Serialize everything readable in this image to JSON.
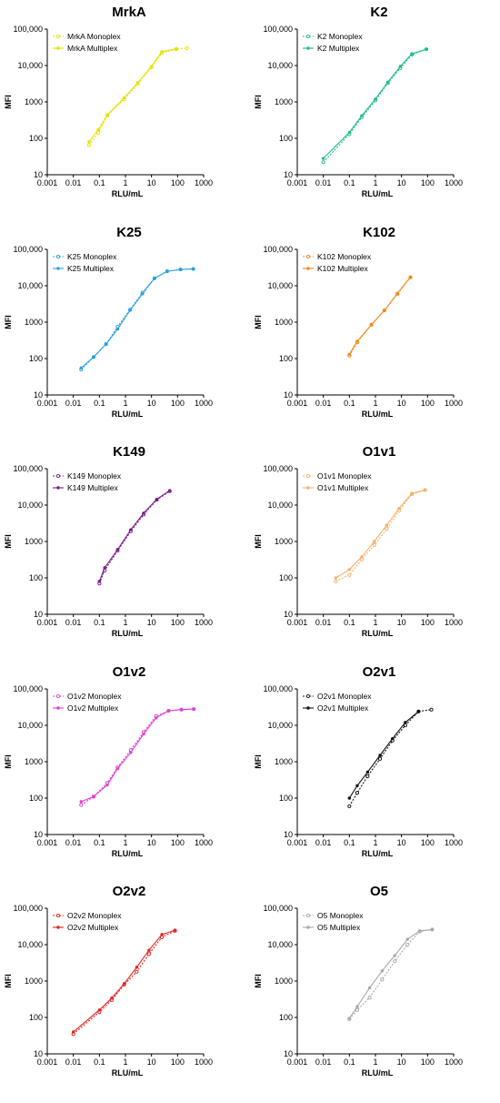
{
  "figure": {
    "xlabel": "RLU/mL",
    "ylabel": "MFI",
    "x_ticks": [
      "0.001",
      "0.01",
      "0.1",
      "1",
      "10",
      "100",
      "1000"
    ],
    "y_ticks": [
      "10",
      "100",
      "1000",
      "10,000",
      "100,000"
    ]
  },
  "chart_data": [
    {
      "type": "line",
      "title": "MrkA",
      "xlabel": "RLU/mL",
      "ylabel": "MFI",
      "x_scale": "log",
      "y_scale": "log",
      "xlim": [
        0.001,
        1000
      ],
      "ylim": [
        10,
        100000
      ],
      "color": "#e8e000",
      "legend_position": "top-left",
      "series": [
        {
          "name": "MrkA Monoplex",
          "style": "dotted",
          "x": [
            0.04,
            0.09,
            0.2,
            0.9,
            3,
            10,
            25,
            90,
            230
          ],
          "y": [
            65,
            140,
            420,
            1200,
            3200,
            9000,
            22000,
            28000,
            30000
          ]
        },
        {
          "name": "MrkA Multiplex",
          "style": "solid",
          "x": [
            0.04,
            0.09,
            0.2,
            0.9,
            3,
            10,
            25,
            90
          ],
          "y": [
            80,
            170,
            440,
            1300,
            3400,
            9500,
            24000,
            29000
          ]
        }
      ]
    },
    {
      "type": "line",
      "title": "K2",
      "xlabel": "RLU/mL",
      "ylabel": "MFI",
      "x_scale": "log",
      "y_scale": "log",
      "xlim": [
        0.001,
        1000
      ],
      "ylim": [
        10,
        100000
      ],
      "color": "#1fba8a",
      "legend_position": "top-left",
      "series": [
        {
          "name": "K2 Monoplex",
          "style": "dotted",
          "x": [
            0.01,
            0.1,
            0.3,
            1,
            3,
            9,
            25,
            90
          ],
          "y": [
            22,
            130,
            380,
            1100,
            3300,
            8500,
            20000,
            28000
          ]
        },
        {
          "name": "K2 Multiplex",
          "style": "solid",
          "x": [
            0.01,
            0.1,
            0.3,
            1,
            3,
            9,
            25,
            90
          ],
          "y": [
            28,
            145,
            420,
            1200,
            3500,
            9500,
            21000,
            28000
          ]
        }
      ]
    },
    {
      "type": "line",
      "title": "K25",
      "xlabel": "RLU/mL",
      "ylabel": "MFI",
      "x_scale": "log",
      "y_scale": "log",
      "xlim": [
        0.001,
        1000
      ],
      "ylim": [
        10,
        100000
      ],
      "color": "#2ca0e0",
      "legend_position": "top-left",
      "series": [
        {
          "name": "K25 Monoplex",
          "style": "dotted",
          "x": [
            0.02,
            0.06,
            0.18,
            0.5,
            1.5,
            4.5,
            13,
            40,
            130,
            400
          ],
          "y": [
            50,
            110,
            250,
            750,
            2200,
            6500,
            16000,
            25000,
            28000,
            29000
          ]
        },
        {
          "name": "K25 Multiplex",
          "style": "solid",
          "x": [
            0.02,
            0.06,
            0.18,
            0.5,
            1.5,
            4.5,
            13,
            40,
            130,
            400
          ],
          "y": [
            55,
            110,
            250,
            650,
            2100,
            6000,
            16000,
            25000,
            28000,
            29000
          ]
        }
      ]
    },
    {
      "type": "line",
      "title": "K102",
      "xlabel": "RLU/mL",
      "ylabel": "MFI",
      "x_scale": "log",
      "y_scale": "log",
      "xlim": [
        0.001,
        1000
      ],
      "ylim": [
        10,
        100000
      ],
      "color": "#f08a1c",
      "legend_position": "top-left",
      "series": [
        {
          "name": "K102 Monoplex",
          "style": "dotted",
          "x": [
            0.1,
            0.2,
            0.7,
            2.2,
            7,
            22
          ],
          "y": [
            120,
            280,
            850,
            2100,
            6000,
            17000
          ]
        },
        {
          "name": "K102 Multiplex",
          "style": "solid",
          "x": [
            0.1,
            0.2,
            0.7,
            2.2,
            7,
            22
          ],
          "y": [
            130,
            300,
            850,
            2100,
            6200,
            17500
          ]
        }
      ]
    },
    {
      "type": "line",
      "title": "K149",
      "xlabel": "RLU/mL",
      "ylabel": "MFI",
      "x_scale": "log",
      "y_scale": "log",
      "xlim": [
        0.001,
        1000
      ],
      "ylim": [
        10,
        100000
      ],
      "color": "#7b1a8c",
      "legend_position": "top-left",
      "series": [
        {
          "name": "K149 Monoplex",
          "style": "dotted",
          "x": [
            0.1,
            0.16,
            0.5,
            1.6,
            5,
            16,
            50
          ],
          "y": [
            70,
            160,
            560,
            1900,
            5500,
            14000,
            24000
          ]
        },
        {
          "name": "K149 Multiplex",
          "style": "solid",
          "x": [
            0.1,
            0.16,
            0.5,
            1.6,
            5,
            16,
            50
          ],
          "y": [
            80,
            190,
            600,
            2100,
            6000,
            14500,
            25000
          ]
        }
      ]
    },
    {
      "type": "line",
      "title": "O1v1",
      "xlabel": "RLU/mL",
      "ylabel": "MFI",
      "x_scale": "log",
      "y_scale": "log",
      "xlim": [
        0.001,
        1000
      ],
      "ylim": [
        10,
        100000
      ],
      "color": "#f7b06a",
      "legend_position": "top-left",
      "series": [
        {
          "name": "O1v1 Monoplex",
          "style": "dotted",
          "x": [
            0.03,
            0.1,
            0.3,
            0.9,
            2.7,
            8,
            25,
            80
          ],
          "y": [
            80,
            120,
            320,
            800,
            2200,
            7000,
            20000,
            26000
          ]
        },
        {
          "name": "O1v1 Multiplex",
          "style": "solid",
          "x": [
            0.03,
            0.1,
            0.3,
            0.9,
            2.7,
            8,
            25,
            80
          ],
          "y": [
            100,
            170,
            380,
            1000,
            2800,
            8000,
            21000,
            26000
          ]
        }
      ]
    },
    {
      "type": "line",
      "title": "O1v2",
      "xlabel": "RLU/mL",
      "ylabel": "MFI",
      "x_scale": "log",
      "y_scale": "log",
      "xlim": [
        0.001,
        1000
      ],
      "ylim": [
        10,
        100000
      ],
      "color": "#e23fd6",
      "legend_position": "top-left",
      "series": [
        {
          "name": "O1v2 Monoplex",
          "style": "dotted",
          "x": [
            0.02,
            0.06,
            0.2,
            0.5,
            1.6,
            5,
            15,
            45,
            140,
            420
          ],
          "y": [
            65,
            110,
            260,
            700,
            2100,
            6500,
            18000,
            25000,
            27000,
            28000
          ]
        },
        {
          "name": "O1v2 Multiplex",
          "style": "solid",
          "x": [
            0.02,
            0.06,
            0.2,
            0.5,
            1.6,
            5,
            15,
            45,
            140,
            420
          ],
          "y": [
            80,
            110,
            230,
            650,
            1800,
            5800,
            16000,
            25000,
            27000,
            28000
          ]
        }
      ]
    },
    {
      "type": "line",
      "title": "O2v1",
      "xlabel": "RLU/mL",
      "ylabel": "MFI",
      "x_scale": "log",
      "y_scale": "log",
      "xlim": [
        0.001,
        1000
      ],
      "ylim": [
        10,
        100000
      ],
      "color": "#111111",
      "legend_position": "top-left",
      "series": [
        {
          "name": "O2v1 Monoplex",
          "style": "dotted",
          "x": [
            0.1,
            0.2,
            0.5,
            1.5,
            4.5,
            14,
            45,
            140
          ],
          "y": [
            60,
            140,
            400,
            1200,
            3800,
            10000,
            24000,
            27000
          ]
        },
        {
          "name": "O2v1 Multiplex",
          "style": "solid",
          "x": [
            0.1,
            0.2,
            0.5,
            1.5,
            4.5,
            14,
            45
          ],
          "y": [
            100,
            220,
            520,
            1500,
            4300,
            12000,
            24000
          ]
        }
      ]
    },
    {
      "type": "line",
      "title": "O2v2",
      "xlabel": "RLU/mL",
      "ylabel": "MFI",
      "x_scale": "log",
      "y_scale": "log",
      "xlim": [
        0.001,
        1000
      ],
      "ylim": [
        10,
        100000
      ],
      "color": "#e02020",
      "legend_position": "top-left",
      "series": [
        {
          "name": "O2v2 Monoplex",
          "style": "dotted",
          "x": [
            0.01,
            0.1,
            0.3,
            0.9,
            2.7,
            8,
            25,
            80
          ],
          "y": [
            35,
            140,
            300,
            800,
            1800,
            5500,
            16000,
            24000
          ]
        },
        {
          "name": "O2v2 Multiplex",
          "style": "solid",
          "x": [
            0.01,
            0.1,
            0.3,
            0.9,
            2.7,
            8,
            25,
            80
          ],
          "y": [
            40,
            160,
            340,
            850,
            2400,
            7000,
            19000,
            25000
          ]
        }
      ]
    },
    {
      "type": "line",
      "title": "O5",
      "xlabel": "RLU/mL",
      "ylabel": "MFI",
      "x_scale": "log",
      "y_scale": "log",
      "xlim": [
        0.001,
        1000
      ],
      "ylim": [
        10,
        100000
      ],
      "color": "#a8a8a8",
      "legend_position": "top-left",
      "series": [
        {
          "name": "O5 Monoplex",
          "style": "dotted",
          "x": [
            0.1,
            0.2,
            0.6,
            1.8,
            5.5,
            17,
            50,
            150
          ],
          "y": [
            90,
            160,
            350,
            1100,
            3500,
            10000,
            23000,
            26000
          ]
        },
        {
          "name": "O5 Multiplex",
          "style": "solid",
          "x": [
            0.1,
            0.2,
            0.6,
            1.8,
            5.5,
            17,
            50,
            150
          ],
          "y": [
            95,
            200,
            650,
            1900,
            5000,
            14000,
            24000,
            26000
          ]
        }
      ]
    }
  ]
}
